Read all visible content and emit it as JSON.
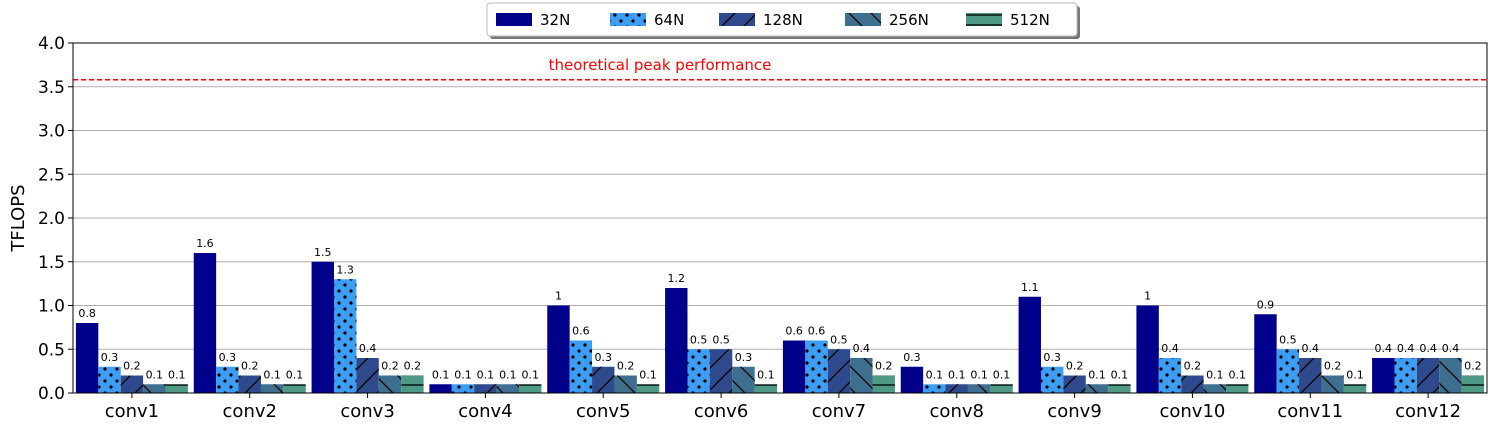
{
  "chart_data": {
    "type": "bar",
    "categories": [
      "conv1",
      "conv2",
      "conv3",
      "conv4",
      "conv5",
      "conv6",
      "conv7",
      "conv8",
      "conv9",
      "conv10",
      "conv11",
      "conv12"
    ],
    "series": [
      {
        "name": "32N",
        "values": [
          0.8,
          1.6,
          1.5,
          0.1,
          1,
          1.2,
          0.6,
          0.3,
          1.1,
          1,
          0.9,
          0.4
        ],
        "color": "#00008b",
        "hatch": "none"
      },
      {
        "name": "64N",
        "values": [
          0.3,
          0.3,
          1.3,
          0.1,
          0.6,
          0.5,
          0.6,
          0.1,
          0.3,
          0.4,
          0.5,
          0.4
        ],
        "color": "#3d9df3",
        "hatch": "dots"
      },
      {
        "name": "128N",
        "values": [
          0.2,
          0.2,
          0.4,
          0.1,
          0.3,
          0.5,
          0.5,
          0.1,
          0.2,
          0.2,
          0.4,
          0.4
        ],
        "color": "#2e4a8c",
        "hatch": "forward-slash"
      },
      {
        "name": "256N",
        "values": [
          0.1,
          0.1,
          0.2,
          0.1,
          0.2,
          0.3,
          0.4,
          0.1,
          0.1,
          0.1,
          0.2,
          0.4
        ],
        "color": "#3f6f8f",
        "hatch": "back-slash"
      },
      {
        "name": "512N",
        "values": [
          0.1,
          0.1,
          0.2,
          0.1,
          0.1,
          0.1,
          0.2,
          0.1,
          0.1,
          0.1,
          0.1,
          0.2
        ],
        "color": "#4e9a86",
        "hatch": "horizontal"
      }
    ],
    "ylabel": "TFLOPS",
    "xlabel": "",
    "ylim": [
      0,
      4.0
    ],
    "yticks": [
      "0.0",
      "0.5",
      "1.0",
      "1.5",
      "2.0",
      "2.5",
      "3.0",
      "3.5",
      "4.0"
    ],
    "grid": "horizontal",
    "legend_position": "top-center",
    "reference_line": {
      "value": 3.58,
      "label": "theoretical peak performance",
      "color": "#ff0000",
      "style": "dashed"
    }
  }
}
